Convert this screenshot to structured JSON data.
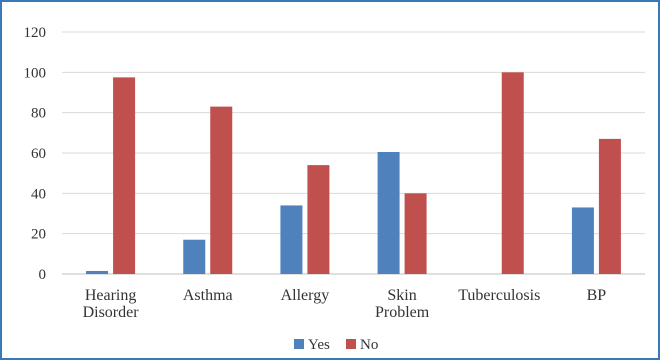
{
  "chart_data": {
    "type": "bar",
    "categories": [
      "Hearing Disorder",
      "Asthma",
      "Allergy",
      "Skin Problem",
      "Tuberculosis",
      "BP"
    ],
    "category_lines": [
      [
        "Hearing",
        "Disorder"
      ],
      [
        "Asthma"
      ],
      [
        "Allergy"
      ],
      [
        "Skin",
        "Problem"
      ],
      [
        "Tuberculosis"
      ],
      [
        "BP"
      ]
    ],
    "series": [
      {
        "name": "Yes",
        "color": "#4f81bd",
        "values": [
          1.5,
          17,
          34,
          60.5,
          0,
          33
        ]
      },
      {
        "name": "No",
        "color": "#c0504d",
        "values": [
          97.5,
          83,
          54,
          40,
          100,
          67
        ]
      }
    ],
    "title": "",
    "xlabel": "",
    "ylabel": "",
    "ylim": [
      0,
      120
    ],
    "yticks": [
      0,
      20,
      40,
      60,
      80,
      100,
      120
    ],
    "grid": true,
    "legend_position": "bottom"
  }
}
